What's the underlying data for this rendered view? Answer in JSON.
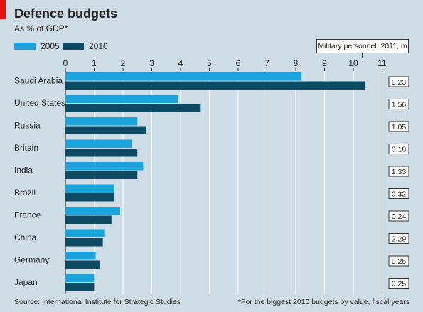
{
  "header": {
    "title": "Defence budgets",
    "subtitle": "As % of GDP*"
  },
  "personnel_header": "Military personnel, 2011, m",
  "footer": {
    "source": "Source: International Institute for Strategic Studies",
    "note": "*For the biggest 2010 budgets by value, fiscal years"
  },
  "colors": {
    "series_2005": "#1ba4dc",
    "series_2010": "#0d4a63",
    "background": "#cfdde6",
    "accent_tag": "#e3120b"
  },
  "chart_data": {
    "type": "bar",
    "orientation": "horizontal",
    "title": "Defence budgets",
    "subtitle": "As % of GDP*",
    "categories": [
      "Saudi Arabia",
      "United States",
      "Russia",
      "Britain",
      "India",
      "Brazil",
      "France",
      "China",
      "Germany",
      "Japan"
    ],
    "series": [
      {
        "name": "2005",
        "values": [
          8.2,
          3.9,
          2.5,
          2.3,
          2.7,
          1.7,
          1.9,
          1.35,
          1.05,
          1.0
        ]
      },
      {
        "name": "2010",
        "values": [
          10.4,
          4.7,
          2.8,
          2.5,
          2.5,
          1.7,
          1.6,
          1.3,
          1.2,
          1.0
        ]
      }
    ],
    "xlim": [
      0,
      11
    ],
    "xticks": [
      "0",
      "1",
      "2",
      "3",
      "4",
      "5",
      "6",
      "7",
      "8",
      "9",
      "10",
      "11"
    ],
    "grid": true,
    "legend_position": "top-left",
    "military_personnel": [
      "0.23",
      "1.56",
      "1.05",
      "0.18",
      "1.33",
      "0.32",
      "0.24",
      "2.29",
      "0.25",
      "0.25"
    ]
  }
}
